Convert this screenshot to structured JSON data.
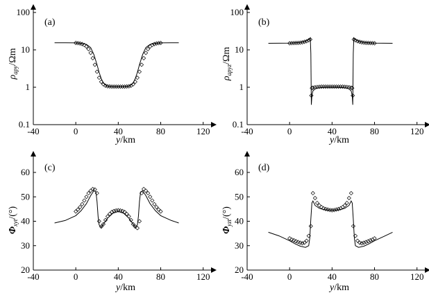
{
  "panels": [
    {
      "id": "a",
      "panel_label": "(a)",
      "ylabel_sym": "ρ",
      "ylabel_sub": "apy",
      "ylabel_unit": "/Ωm",
      "xlabel_sym": "y",
      "xlabel_unit": "/km"
    },
    {
      "id": "b",
      "panel_label": "(b)",
      "ylabel_sym": "ρ",
      "ylabel_sub": "apyz",
      "ylabel_unit": "/Ωm",
      "xlabel_sym": "y",
      "xlabel_unit": "/km"
    },
    {
      "id": "c",
      "panel_label": "(c)",
      "ylabel_sym": "Φ",
      "ylabel_sub": "xyt",
      "ylabel_unit": "/(°)",
      "xlabel_sym": "y",
      "xlabel_unit": "/km"
    },
    {
      "id": "d",
      "panel_label": "(d)",
      "ylabel_sym": "Φ",
      "ylabel_sub": "yzt",
      "ylabel_unit": "/(°)",
      "xlabel_sym": "y",
      "xlabel_unit": "/km"
    }
  ],
  "chart_data": [
    {
      "type": "line",
      "panel": "a",
      "xlim": [
        -40,
        130
      ],
      "xticks": [
        -40,
        0,
        40,
        80,
        120
      ],
      "ylim": [
        0.1,
        100
      ],
      "yscale": "log",
      "yticks": [
        0.1,
        1,
        10,
        100
      ],
      "ytick_labels": [
        "0.1",
        "1",
        "10",
        "100"
      ],
      "grid": false,
      "series": [
        {
          "style": "line",
          "x": [
            -20,
            -10,
            0,
            5,
            10,
            14,
            17,
            20,
            22,
            24,
            26,
            28,
            30,
            35,
            40,
            45,
            50,
            52,
            54,
            56,
            58,
            60,
            63,
            66,
            70,
            75,
            80,
            90,
            97
          ],
          "y": [
            15.5,
            15.5,
            15.4,
            15,
            14,
            11.5,
            7.5,
            4,
            2.5,
            1.7,
            1.3,
            1.15,
            1.07,
            1.04,
            1.04,
            1.04,
            1.07,
            1.15,
            1.3,
            1.7,
            2.5,
            4,
            7.5,
            11.5,
            14,
            15,
            15.4,
            15.5,
            15.5
          ]
        },
        {
          "style": "markers",
          "x": [
            0,
            2,
            4,
            6,
            8,
            10,
            12,
            14,
            16,
            18,
            20,
            22,
            24,
            26,
            28,
            30,
            32,
            34,
            36,
            38,
            40,
            42,
            44,
            46,
            48,
            50,
            52,
            54,
            56,
            58,
            60,
            62,
            64,
            66,
            68,
            70,
            72,
            74,
            76,
            78,
            80
          ],
          "y": [
            15.3,
            15.1,
            14.8,
            14.3,
            13.5,
            12.3,
            10.5,
            8.3,
            6.0,
            4.0,
            2.6,
            1.8,
            1.4,
            1.2,
            1.1,
            1.06,
            1.05,
            1.04,
            1.04,
            1.04,
            1.04,
            1.04,
            1.04,
            1.04,
            1.05,
            1.06,
            1.1,
            1.2,
            1.4,
            1.8,
            2.6,
            4.0,
            6.0,
            8.3,
            10.5,
            12.3,
            13.5,
            14.3,
            14.8,
            15.1,
            15.3
          ]
        }
      ]
    },
    {
      "type": "line",
      "panel": "b",
      "xlim": [
        -40,
        130
      ],
      "xticks": [
        -40,
        0,
        40,
        80,
        120
      ],
      "ylim": [
        0.1,
        100
      ],
      "yscale": "log",
      "yticks": [
        0.1,
        1,
        10,
        100
      ],
      "ytick_labels": [
        "0.1",
        "1",
        "10",
        "100"
      ],
      "grid": false,
      "series": [
        {
          "style": "line",
          "x": [
            -20,
            0,
            10,
            15,
            18,
            19.5,
            20,
            20.5,
            21,
            22,
            24,
            26,
            30,
            35,
            40,
            45,
            50,
            54,
            56,
            58,
            59,
            59.5,
            60,
            60.5,
            62,
            65,
            70,
            80,
            97
          ],
          "y": [
            15,
            15.2,
            15.8,
            17,
            19,
            21,
            8,
            0.34,
            0.6,
            0.8,
            0.9,
            0.95,
            0.98,
            1,
            1,
            1,
            0.98,
            0.95,
            0.9,
            0.8,
            0.6,
            0.34,
            8,
            21,
            19,
            17,
            15.8,
            15.2,
            15
          ]
        },
        {
          "style": "markers",
          "x": [
            0,
            2,
            4,
            6,
            8,
            10,
            12,
            14,
            16,
            18,
            19.5,
            20.5,
            21,
            22,
            24,
            26,
            28,
            30,
            32,
            34,
            36,
            38,
            40,
            42,
            44,
            46,
            48,
            50,
            52,
            54,
            56,
            58,
            59,
            59.5,
            60.5,
            62,
            64,
            66,
            68,
            70,
            72,
            74,
            76,
            78,
            80
          ],
          "y": [
            15,
            15.1,
            15.2,
            15.3,
            15.4,
            15.6,
            15.9,
            16.4,
            17.0,
            18.0,
            19.0,
            0.6,
            0.95,
            0.98,
            1.0,
            1.02,
            1.03,
            1.04,
            1.04,
            1.04,
            1.04,
            1.04,
            1.04,
            1.04,
            1.04,
            1.04,
            1.04,
            1.04,
            1.03,
            1.02,
            1.0,
            0.98,
            0.95,
            0.6,
            19.0,
            18.0,
            17.0,
            16.4,
            15.9,
            15.6,
            15.4,
            15.3,
            15.2,
            15.1,
            15
          ]
        }
      ]
    },
    {
      "type": "line",
      "panel": "c",
      "xlim": [
        -40,
        130
      ],
      "xticks": [
        -40,
        0,
        40,
        80,
        120
      ],
      "ylim": [
        20,
        70
      ],
      "yscale": "linear",
      "yticks": [
        20,
        30,
        40,
        50,
        60
      ],
      "ytick_labels": [
        "20",
        "30",
        "40",
        "50",
        "60"
      ],
      "grid": false,
      "series": [
        {
          "style": "line",
          "x": [
            -20,
            -10,
            0,
            5,
            10,
            14,
            17,
            19,
            20,
            21,
            22,
            24,
            26,
            30,
            35,
            40,
            45,
            50,
            54,
            56,
            58,
            59,
            60,
            61,
            63,
            66,
            70,
            75,
            80,
            90,
            97
          ],
          "y": [
            39.3,
            40.3,
            42.3,
            44.3,
            47.2,
            50.5,
            52.5,
            52.0,
            48,
            42,
            38.5,
            37.5,
            38.8,
            41.3,
            43.3,
            44,
            43.3,
            41.3,
            38.8,
            37.5,
            38.5,
            42,
            48,
            52.0,
            52.5,
            50.5,
            47.2,
            44.3,
            42.3,
            40.3,
            39.3
          ]
        },
        {
          "style": "markers",
          "x": [
            0,
            2,
            4,
            6,
            8,
            10,
            12,
            14,
            16,
            18,
            20,
            22,
            24,
            26,
            28,
            30,
            32,
            34,
            36,
            38,
            40,
            42,
            44,
            46,
            48,
            50,
            52,
            54,
            56,
            58,
            60,
            62,
            64,
            66,
            68,
            70,
            72,
            74,
            76,
            78,
            80
          ],
          "y": [
            44,
            44.8,
            45.8,
            47,
            48.5,
            50,
            51.5,
            52.5,
            53.2,
            53,
            51.5,
            40,
            37.8,
            38.8,
            40.5,
            42,
            43,
            43.8,
            44.2,
            44.4,
            44.5,
            44.4,
            44.2,
            43.8,
            43,
            42,
            40.5,
            38.8,
            37.8,
            37.2,
            40,
            51.5,
            53.2,
            52.5,
            51.5,
            50,
            48.5,
            47,
            45.8,
            44.8,
            44
          ]
        }
      ]
    },
    {
      "type": "line",
      "panel": "d",
      "xlim": [
        -40,
        130
      ],
      "xticks": [
        -40,
        0,
        40,
        80,
        120
      ],
      "ylim": [
        20,
        70
      ],
      "yscale": "linear",
      "yticks": [
        20,
        30,
        40,
        50,
        60
      ],
      "ytick_labels": [
        "20",
        "30",
        "40",
        "50",
        "60"
      ],
      "grid": false,
      "series": [
        {
          "style": "line",
          "x": [
            -20,
            -10,
            0,
            5,
            10,
            15,
            18,
            19,
            20,
            21,
            22,
            24,
            28,
            32,
            36,
            40,
            44,
            48,
            52,
            56,
            58,
            59,
            60,
            61,
            62,
            65,
            70,
            75,
            80,
            90,
            97
          ],
          "y": [
            35.5,
            34,
            32,
            30.8,
            29.8,
            29.3,
            30,
            33,
            41,
            47.5,
            48.3,
            46.5,
            45.3,
            44.8,
            44.6,
            44.5,
            44.6,
            44.8,
            45.3,
            46.5,
            48.3,
            47.5,
            41,
            33,
            30,
            29.3,
            29.8,
            30.8,
            32,
            34,
            35.5
          ]
        },
        {
          "style": "markers",
          "x": [
            0,
            2,
            4,
            6,
            8,
            10,
            12,
            14,
            16,
            18,
            20,
            22,
            24,
            26,
            28,
            30,
            32,
            34,
            36,
            38,
            40,
            42,
            44,
            46,
            48,
            50,
            52,
            54,
            56,
            58,
            60,
            62,
            64,
            66,
            68,
            70,
            72,
            74,
            76,
            78,
            80
          ],
          "y": [
            33,
            32.5,
            32.2,
            31.8,
            31.5,
            31.2,
            31,
            31.2,
            32,
            34,
            38,
            51.5,
            49.5,
            47.5,
            46.5,
            45.8,
            45.3,
            45,
            44.8,
            44.6,
            44.5,
            44.6,
            44.8,
            45,
            45.3,
            45.8,
            46.5,
            47.5,
            49.5,
            51.5,
            38,
            34,
            32,
            31.2,
            31,
            31.2,
            31.5,
            31.8,
            32.2,
            32.5,
            33
          ]
        }
      ]
    }
  ]
}
